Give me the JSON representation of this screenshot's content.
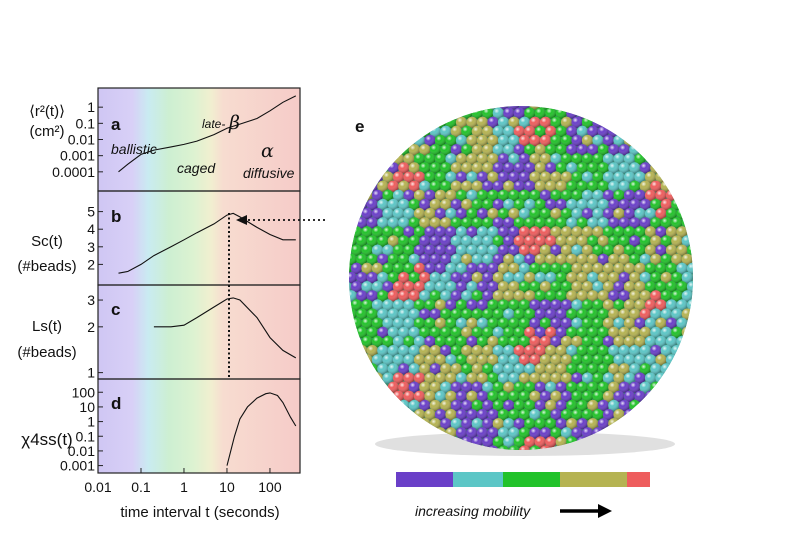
{
  "figure": {
    "panels": {
      "a": {
        "label": "a",
        "ylabel_line1": "⟨r²(t)⟩",
        "ylabel_line2": "(cm²)",
        "yticks": [
          "1",
          "0.1",
          "0.01",
          "0.001",
          "0.0001"
        ],
        "region_labels": {
          "ballistic": "ballistic",
          "caged": "caged",
          "late": "late-",
          "beta": "β",
          "alpha": "α",
          "diffusive": "diffusive"
        }
      },
      "b": {
        "label": "b",
        "ylabel_line1": "Sc(t)",
        "ylabel_line2": "(#beads)",
        "yticks": [
          "5",
          "4",
          "3",
          "2"
        ]
      },
      "c": {
        "label": "c",
        "ylabel_line1": "Ls(t)",
        "ylabel_line2": "(#beads)",
        "yticks": [
          "3",
          "2",
          "1"
        ]
      },
      "d": {
        "label": "d",
        "ylabel": "χ4ss(t)",
        "yticks": [
          "100",
          "10",
          "1",
          "0.1",
          "0.01",
          "0.001"
        ]
      }
    },
    "xticks": [
      "0.01",
      "0.1",
      "1",
      "10",
      "100"
    ],
    "xlabel": "time interval t (seconds)",
    "panel_e_label": "e",
    "colorbar": {
      "colors": [
        "#6a3fc8",
        "#5cc6c6",
        "#22c22a",
        "#b5b352",
        "#ee5d5d"
      ],
      "caption": "increasing mobility"
    }
  },
  "chart_data": [
    {
      "type": "line",
      "panel": "a",
      "title": "",
      "xlabel": "time interval t (seconds)",
      "ylabel": "⟨r²(t)⟩ (cm²)",
      "xscale": "log",
      "yscale": "log",
      "xlim": [
        0.01,
        500
      ],
      "ylim": [
        1e-05,
        10
      ],
      "x": [
        0.03,
        0.05,
        0.1,
        0.2,
        0.5,
        1,
        2,
        5,
        10,
        20,
        50,
        100,
        200,
        400
      ],
      "y": [
        0.0001,
        0.0003,
        0.0012,
        0.0022,
        0.0035,
        0.005,
        0.008,
        0.02,
        0.05,
        0.09,
        0.2,
        0.6,
        2,
        5
      ]
    },
    {
      "type": "line",
      "panel": "b",
      "title": "",
      "xlabel": "time interval t (seconds)",
      "ylabel": "Sc(t) (#beads)",
      "xscale": "log",
      "yscale": "linear",
      "xlim": [
        0.01,
        500
      ],
      "ylim": [
        1,
        6
      ],
      "x": [
        0.03,
        0.05,
        0.1,
        0.2,
        0.5,
        1,
        2,
        5,
        10,
        14,
        20,
        50,
        100,
        200,
        400
      ],
      "y": [
        1.5,
        1.6,
        2.0,
        2.5,
        3.0,
        3.4,
        3.8,
        4.3,
        4.8,
        4.9,
        4.7,
        4.1,
        3.7,
        3.4,
        3.4
      ]
    },
    {
      "type": "line",
      "panel": "c",
      "title": "",
      "xlabel": "time interval t (seconds)",
      "ylabel": "Ls(t) (#beads)",
      "xscale": "log",
      "yscale": "log",
      "xlim": [
        0.01,
        500
      ],
      "ylim": [
        0.95,
        3.6
      ],
      "x": [
        0.2,
        0.5,
        1,
        2,
        5,
        10,
        14,
        20,
        50,
        100,
        200,
        400
      ],
      "y": [
        2.0,
        2.0,
        2.05,
        2.3,
        2.7,
        3.05,
        3.1,
        3.0,
        2.3,
        1.7,
        1.4,
        1.25
      ]
    },
    {
      "type": "line",
      "panel": "d",
      "title": "",
      "xlabel": "time interval t (seconds)",
      "ylabel": "χ4ss(t)",
      "xscale": "log",
      "yscale": "log",
      "xlim": [
        0.01,
        500
      ],
      "ylim": [
        0.0005,
        500
      ],
      "x": [
        10,
        15,
        20,
        30,
        50,
        80,
        100,
        150,
        200,
        300,
        400
      ],
      "y": [
        0.001,
        0.1,
        1.5,
        10,
        40,
        80,
        90,
        60,
        20,
        2,
        0.5
      ]
    }
  ]
}
